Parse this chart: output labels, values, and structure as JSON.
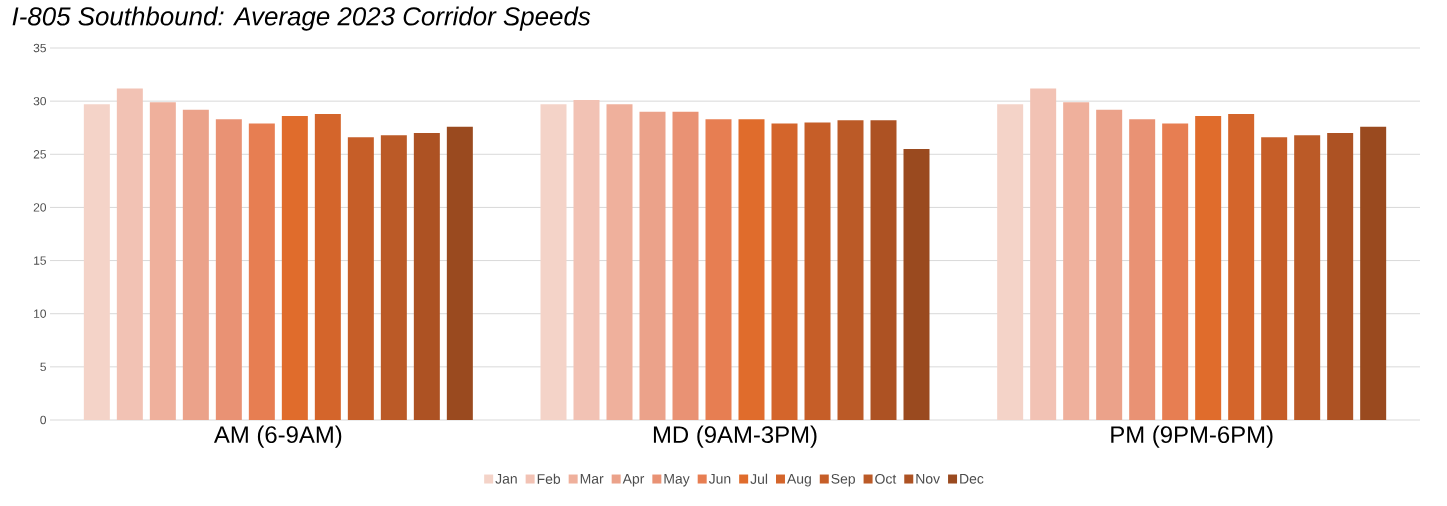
{
  "chart_data": {
    "type": "bar",
    "title": "I-805 Southbound: Average 2023 Corridor Speeds",
    "categories": [
      "AM (6-9AM)",
      "MD (9AM-3PM)",
      "PM (9PM-6PM)"
    ],
    "series": [
      {
        "name": "Jan",
        "color": "#f4d3c8",
        "values": [
          29.7,
          29.7,
          29.7
        ]
      },
      {
        "name": "Feb",
        "color": "#f2c2b4",
        "values": [
          31.2,
          30.1,
          31.2
        ]
      },
      {
        "name": "Mar",
        "color": "#efb09c",
        "values": [
          29.9,
          29.7,
          29.9
        ]
      },
      {
        "name": "Apr",
        "color": "#eba28a",
        "values": [
          29.2,
          29.0,
          29.2
        ]
      },
      {
        "name": "May",
        "color": "#e99274",
        "values": [
          28.3,
          29.0,
          28.3
        ]
      },
      {
        "name": "Jun",
        "color": "#e77e52",
        "values": [
          27.9,
          28.3,
          27.9
        ]
      },
      {
        "name": "Jul",
        "color": "#e06c2c",
        "values": [
          28.6,
          28.3,
          28.6
        ]
      },
      {
        "name": "Aug",
        "color": "#d4652b",
        "values": [
          28.8,
          27.9,
          28.8
        ]
      },
      {
        "name": "Sep",
        "color": "#c65e28",
        "values": [
          26.6,
          28.0,
          26.6
        ]
      },
      {
        "name": "Oct",
        "color": "#bb5a27",
        "values": [
          26.8,
          28.2,
          26.8
        ]
      },
      {
        "name": "Nov",
        "color": "#ad5223",
        "values": [
          27.0,
          28.2,
          27.0
        ]
      },
      {
        "name": "Dec",
        "color": "#9a4a1f",
        "values": [
          27.6,
          25.5,
          27.6
        ]
      }
    ],
    "ylim": [
      0,
      35
    ],
    "yticks": [
      0,
      5,
      10,
      15,
      20,
      25,
      30,
      35
    ],
    "grid": "y",
    "legend": "bottom"
  }
}
